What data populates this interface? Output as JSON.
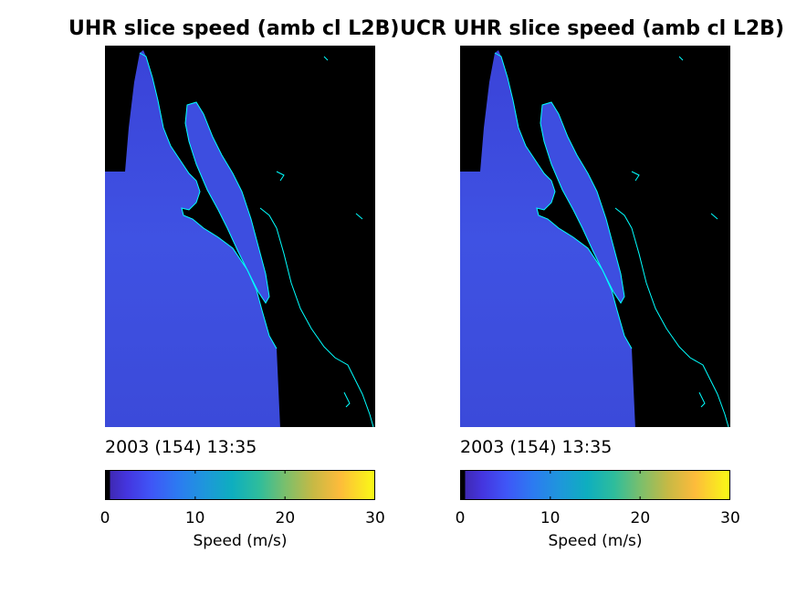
{
  "chart_data": [
    {
      "type": "heatmap",
      "title": "UHR slice speed (amb cl L2B)",
      "timestamp": "2003 (154) 13:35",
      "colorbar": {
        "label": "Speed (m/s)",
        "range": [
          0,
          30
        ],
        "ticks": [
          "0",
          "10",
          "20",
          "30"
        ],
        "tick_values": [
          0,
          10,
          20,
          30
        ],
        "colormap": "parula"
      },
      "typical_speed_range": [
        3,
        8
      ],
      "land_color": "#000000",
      "coastline_color": "#00ffff"
    },
    {
      "type": "heatmap",
      "title": "UCR UHR slice speed (amb cl L2B)",
      "timestamp": "2003 (154) 13:35",
      "colorbar": {
        "label": "Speed (m/s)",
        "range": [
          0,
          30
        ],
        "ticks": [
          "0",
          "10",
          "20",
          "30"
        ],
        "tick_values": [
          0,
          10,
          20,
          30
        ],
        "colormap": "parula"
      },
      "typical_speed_range": [
        3,
        8
      ],
      "land_color": "#000000",
      "coastline_color": "#00ffff"
    }
  ]
}
